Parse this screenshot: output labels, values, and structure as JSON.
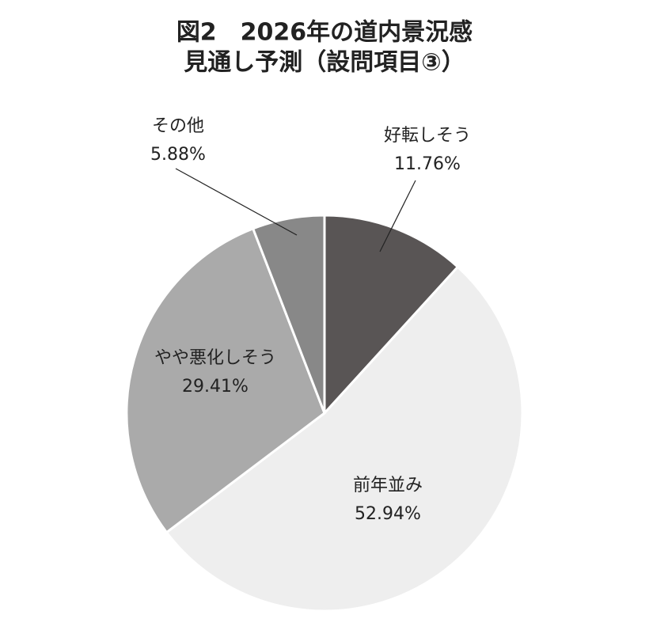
{
  "chart_data": {
    "type": "pie",
    "title": [
      "図2　2026年の道内景況感",
      "見通し予測（設問項目③）"
    ],
    "categories": [
      "好転しそう",
      "前年並み",
      "やや悪化しそう",
      "その他"
    ],
    "values": [
      11.76,
      52.94,
      29.41,
      5.88
    ],
    "value_labels": [
      "11.76%",
      "52.94%",
      "29.41%",
      "5.88%"
    ],
    "colors": [
      "#595555",
      "#eeeeee",
      "#aaaaaa",
      "#888888"
    ]
  }
}
